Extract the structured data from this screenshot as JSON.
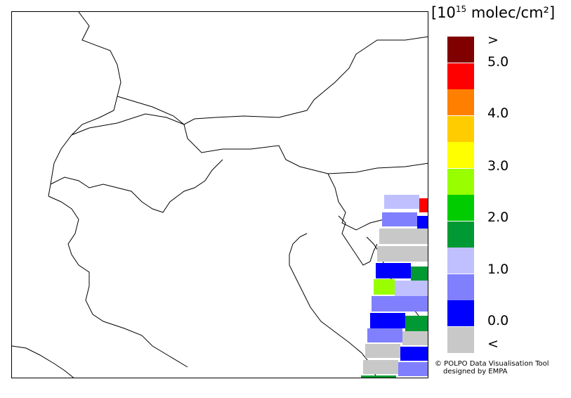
{
  "map": {
    "unit_prefix": "[10",
    "unit_exponent": "15",
    "unit_suffix": " molec/cm²]",
    "legend": {
      "colors": [
        "#c8c8c8",
        "#0000ff",
        "#8080ff",
        "#c0c0ff",
        "#009933",
        "#00cc00",
        "#99ff00",
        "#ffff00",
        "#ffcc00",
        "#ff8000",
        "#ff0000",
        "#800000"
      ],
      "labels": [
        "<",
        "0.0",
        "1.0",
        "2.0",
        "3.0",
        "4.0",
        "5.0",
        ">"
      ]
    },
    "credit_line1": "© POLPO Data Visualisation Tool",
    "credit_line2": "designed by EMPA"
  }
}
